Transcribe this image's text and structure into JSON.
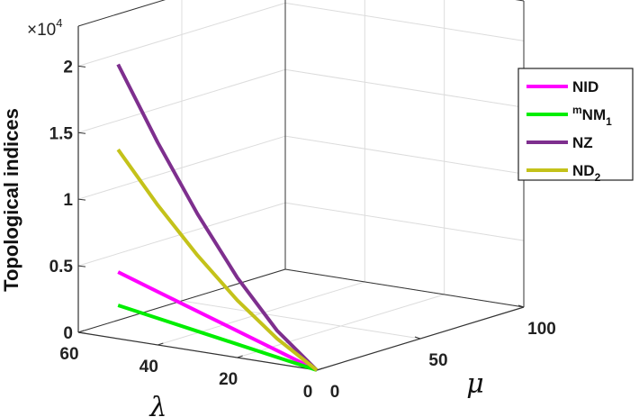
{
  "chart_data": {
    "type": "line",
    "dimensions": "3d",
    "title": "",
    "zlabel": "Topological indices",
    "xlabel": "λ",
    "ylabel": "μ",
    "exponent_label": "×10",
    "exponent_power": "4",
    "xlim": [
      0,
      60
    ],
    "ylim": [
      0,
      100
    ],
    "zlim": [
      0,
      2
    ],
    "x_ticks": [
      "0",
      "20",
      "40",
      "60"
    ],
    "y_ticks": [
      "0",
      "50",
      "100"
    ],
    "z_ticks": [
      "0",
      "0.5",
      "1",
      "1.5",
      "2"
    ],
    "grid": true,
    "legend_position": "right",
    "series": [
      {
        "name": "NID",
        "name_sup": "",
        "name_base": "NID",
        "name_sub": "",
        "color": "#ff00ff",
        "x": [
          0,
          10,
          20,
          30,
          40,
          50
        ],
        "y": [
          0,
          0,
          0,
          0,
          0,
          0
        ],
        "z": [
          0,
          0.1,
          0.2,
          0.3,
          0.4,
          0.5
        ]
      },
      {
        "name": "mNM1",
        "name_sup": "m",
        "name_base": "NM",
        "name_sub": "1",
        "color": "#00ee00",
        "x": [
          0,
          10,
          20,
          30,
          40,
          50
        ],
        "y": [
          0,
          0,
          0,
          0,
          0,
          0
        ],
        "z": [
          0,
          0.05,
          0.1,
          0.15,
          0.2,
          0.25
        ]
      },
      {
        "name": "NZ",
        "name_sup": "",
        "name_base": "NZ",
        "name_sub": "",
        "color": "#7e2f8e",
        "x": [
          0,
          10,
          20,
          30,
          40,
          50
        ],
        "y": [
          0,
          0,
          0,
          0,
          0,
          0
        ],
        "z": [
          0,
          0.25,
          0.6,
          1.03,
          1.52,
          2.06
        ]
      },
      {
        "name": "ND2",
        "name_sup": "",
        "name_base": "ND",
        "name_sub": "2",
        "color": "#c4c21a",
        "x": [
          0,
          10,
          20,
          30,
          40,
          50
        ],
        "y": [
          0,
          0,
          0,
          0,
          0,
          0
        ],
        "z": [
          0,
          0.19,
          0.43,
          0.72,
          1.05,
          1.42
        ]
      }
    ]
  }
}
